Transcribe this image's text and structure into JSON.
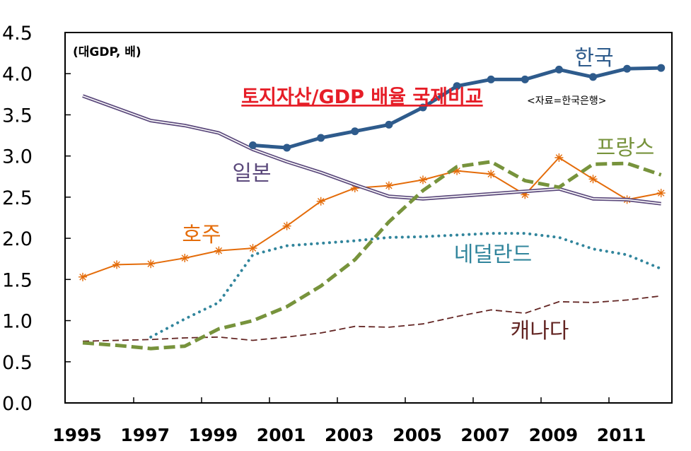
{
  "chart_data": {
    "type": "line",
    "title": "토지자산/GDP 배율 국제비교",
    "unit_label": "(대GDP, 배)",
    "source": "<자료=한국은행>",
    "xlabel": "",
    "ylabel": "",
    "ylim": [
      0,
      4.5
    ],
    "xlim": [
      1995,
      2012
    ],
    "grid": "none",
    "legend": "inline labels",
    "yticks": [
      "0.0",
      "0.5",
      "1.0",
      "1.5",
      "2.0",
      "2.5",
      "3.0",
      "3.5",
      "4.0",
      "4.5"
    ],
    "xticks": [
      "1995",
      "1997",
      "1999",
      "2001",
      "2003",
      "2005",
      "2007",
      "2009",
      "2011"
    ],
    "x": [
      1995,
      1996,
      1997,
      1998,
      1999,
      2000,
      2001,
      2002,
      2003,
      2004,
      2005,
      2006,
      2007,
      2008,
      2009,
      2010,
      2011,
      2012
    ],
    "series": [
      {
        "name": "한국",
        "color": "#2e5b8c",
        "style": "solid-thick-markers",
        "values": [
          null,
          null,
          null,
          null,
          null,
          3.13,
          3.1,
          3.22,
          3.3,
          3.38,
          3.59,
          3.85,
          3.93,
          3.93,
          4.05,
          3.96,
          4.06,
          4.07
        ]
      },
      {
        "name": "일본",
        "color": "#5c4a7c",
        "style": "double-line",
        "values": [
          3.73,
          3.58,
          3.43,
          3.37,
          3.28,
          3.08,
          2.93,
          2.8,
          2.65,
          2.51,
          2.48,
          2.51,
          2.54,
          2.57,
          2.6,
          2.48,
          2.47,
          2.42
        ]
      },
      {
        "name": "프랑스",
        "color": "#77933c",
        "style": "dashed-thick",
        "values": [
          0.73,
          0.7,
          0.66,
          0.69,
          0.9,
          1.0,
          1.17,
          1.42,
          1.74,
          2.2,
          2.58,
          2.87,
          2.93,
          2.7,
          2.62,
          2.9,
          2.91,
          2.77
        ]
      },
      {
        "name": "호주",
        "color": "#e46c0a",
        "style": "star-markers",
        "values": [
          1.53,
          1.68,
          1.69,
          1.76,
          1.85,
          1.88,
          2.15,
          2.45,
          2.61,
          2.64,
          2.71,
          2.82,
          2.78,
          2.53,
          2.98,
          2.72,
          2.47,
          2.55
        ]
      },
      {
        "name": "네덜란드",
        "color": "#31859c",
        "style": "dotted",
        "values": [
          null,
          null,
          0.8,
          1.02,
          1.22,
          1.8,
          1.91,
          1.94,
          1.97,
          2.01,
          2.02,
          2.04,
          2.06,
          2.06,
          2.01,
          1.87,
          1.8,
          1.63
        ]
      },
      {
        "name": "캐나다",
        "color": "#632523",
        "style": "dashed-thin",
        "values": [
          0.75,
          0.76,
          0.77,
          0.79,
          0.8,
          0.76,
          0.8,
          0.85,
          0.93,
          0.92,
          0.96,
          1.05,
          1.13,
          1.09,
          1.23,
          1.22,
          1.25,
          1.3
        ]
      }
    ]
  }
}
